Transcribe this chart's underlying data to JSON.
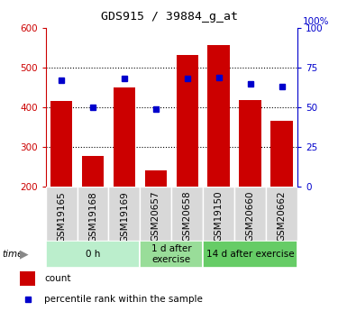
{
  "title": "GDS915 / 39884_g_at",
  "samples": [
    "GSM19165",
    "GSM19168",
    "GSM19169",
    "GSM20657",
    "GSM20658",
    "GSM19150",
    "GSM20660",
    "GSM20662"
  ],
  "counts": [
    415,
    278,
    450,
    242,
    533,
    558,
    418,
    365
  ],
  "percentiles": [
    67,
    50,
    68,
    49,
    68,
    69,
    65,
    63
  ],
  "groups": [
    {
      "label": "0 h",
      "start": 0,
      "end": 3,
      "color": "#bbeecc"
    },
    {
      "label": "1 d after\nexercise",
      "start": 3,
      "end": 5,
      "color": "#99dd99"
    },
    {
      "label": "14 d after exercise",
      "start": 5,
      "end": 8,
      "color": "#66cc66"
    }
  ],
  "ymin": 200,
  "ymax": 600,
  "yticks_left": [
    200,
    300,
    400,
    500,
    600
  ],
  "yticks_right": [
    0,
    25,
    50,
    75,
    100
  ],
  "bar_color": "#cc0000",
  "dot_color": "#0000cc",
  "bar_width": 0.7,
  "ylabel_left_color": "#cc0000",
  "ylabel_right_color": "#0000cc"
}
